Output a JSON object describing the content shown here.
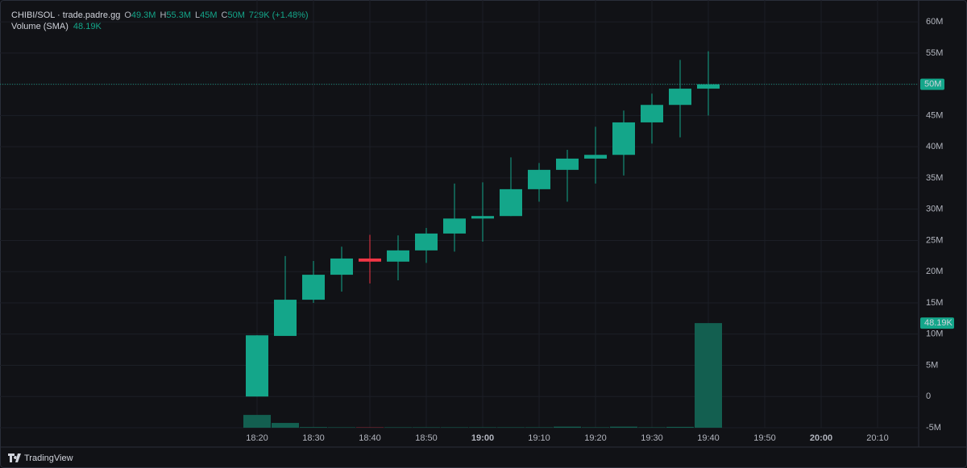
{
  "chart_data": {
    "type": "candlestick",
    "symbol": "CHIBI/SOL · trade.padre.gg",
    "ohlc_names": {
      "open": "O",
      "high": "H",
      "low": "L",
      "close": "C"
    },
    "ohlc_labels": {
      "open": "49.3M",
      "high": "55.3M",
      "low": "45M",
      "close": "50M"
    },
    "change": "729K (+1.48%)",
    "up_color": "#14a68a",
    "down_color": "#f23645",
    "x": [
      "18:20",
      "18:25",
      "18:30",
      "18:35",
      "18:40",
      "18:45",
      "18:50",
      "18:55",
      "19:00",
      "19:05",
      "19:10",
      "19:15",
      "19:20",
      "19:25",
      "19:30",
      "19:35",
      "19:40"
    ],
    "open": [
      0,
      9.7,
      15.5,
      19.5,
      22.1,
      21.6,
      23.4,
      26.1,
      28.5,
      28.9,
      33.2,
      36.3,
      38.1,
      38.7,
      43.9,
      46.7,
      49.3
    ],
    "high": [
      9.8,
      22.5,
      21.7,
      24.0,
      25.9,
      25.8,
      27.0,
      34.1,
      34.3,
      38.3,
      37.4,
      39.5,
      43.2,
      45.8,
      48.5,
      53.9,
      55.3
    ],
    "low": [
      0,
      9.7,
      15.0,
      16.8,
      18.1,
      18.6,
      21.4,
      23.2,
      24.8,
      28.9,
      31.2,
      31.2,
      34.1,
      35.4,
      40.5,
      41.5,
      45
    ],
    "close": [
      9.8,
      15.5,
      19.5,
      22.1,
      21.6,
      23.4,
      26.1,
      28.5,
      28.9,
      33.2,
      36.3,
      38.1,
      38.7,
      43.9,
      46.7,
      49.3,
      50
    ],
    "volume": {
      "name": "Volume (SMA)",
      "color": "#135f50",
      "values": [
        5.9,
        2.2,
        0.3,
        0.2,
        0.2,
        0.2,
        0.2,
        0.2,
        0.2,
        0.2,
        0.2,
        0.5,
        0.2,
        0.5,
        0.2,
        0.4,
        48.19
      ],
      "last_label": "48.19K",
      "ylim": [
        0,
        197
      ]
    },
    "ylim": [
      -5,
      63.5
    ],
    "yticks": [
      {
        "value": 60,
        "label": "60M"
      },
      {
        "value": 55,
        "label": "55M"
      },
      {
        "value": 50,
        "label": "50M"
      },
      {
        "value": 45,
        "label": "45M"
      },
      {
        "value": 40,
        "label": "40M"
      },
      {
        "value": 35,
        "label": "35M"
      },
      {
        "value": 30,
        "label": "30M"
      },
      {
        "value": 25,
        "label": "25M"
      },
      {
        "value": 20,
        "label": "20M"
      },
      {
        "value": 15,
        "label": "15M"
      },
      {
        "value": 10,
        "label": "10M"
      },
      {
        "value": 5,
        "label": "5M"
      },
      0,
      {
        "value": -5,
        "label": "-5M"
      }
    ],
    "xticks": [
      "18:20",
      "18:30",
      "18:40",
      "18:50",
      "19:00",
      "19:10",
      "19:20",
      "19:30",
      "19:40",
      "19:50",
      "20:00",
      "20:10"
    ],
    "grid": true,
    "footer": "TradingView"
  }
}
